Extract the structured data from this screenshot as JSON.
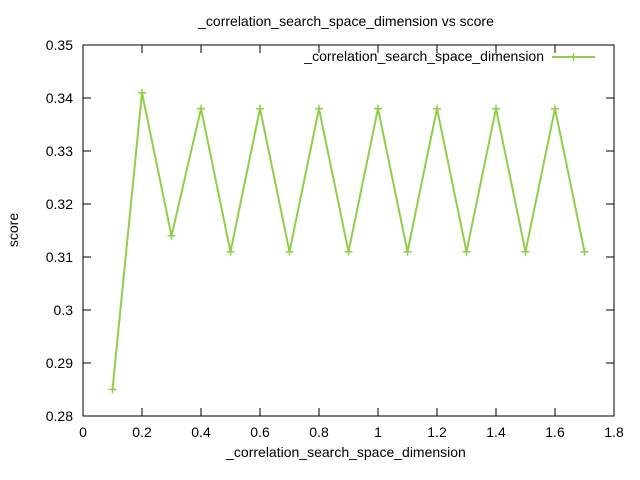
{
  "chart_data": {
    "type": "line",
    "title": "_correlation_search_space_dimension vs score",
    "xlabel": "_correlation_search_space_dimension",
    "ylabel": "score",
    "xlim": [
      0,
      1.8
    ],
    "ylim": [
      0.28,
      0.35
    ],
    "x_ticks": [
      "0",
      "0.2",
      "0.4",
      "0.6",
      "0.8",
      "1",
      "1.2",
      "1.4",
      "1.6",
      "1.8"
    ],
    "y_ticks": [
      "0.28",
      "0.29",
      "0.3",
      "0.31",
      "0.32",
      "0.33",
      "0.34",
      "0.35"
    ],
    "x_tick_values": [
      0,
      0.2,
      0.4,
      0.6,
      0.8,
      1.0,
      1.2,
      1.4,
      1.6,
      1.8
    ],
    "y_tick_values": [
      0.28,
      0.29,
      0.3,
      0.31,
      0.32,
      0.33,
      0.34,
      0.35
    ],
    "legend_position": "top-right",
    "grid": false,
    "series": [
      {
        "name": "_correlation_search_space_dimension",
        "color": "#8fce4a",
        "marker": "plus",
        "x": [
          0.1,
          0.2,
          0.3,
          0.4,
          0.5,
          0.6,
          0.7,
          0.8,
          0.9,
          1.0,
          1.1,
          1.2,
          1.3,
          1.4,
          1.5,
          1.6,
          1.7
        ],
        "y": [
          0.285,
          0.341,
          0.314,
          0.338,
          0.311,
          0.338,
          0.311,
          0.338,
          0.311,
          0.338,
          0.311,
          0.338,
          0.311,
          0.338,
          0.311,
          0.338,
          0.311
        ]
      }
    ]
  }
}
